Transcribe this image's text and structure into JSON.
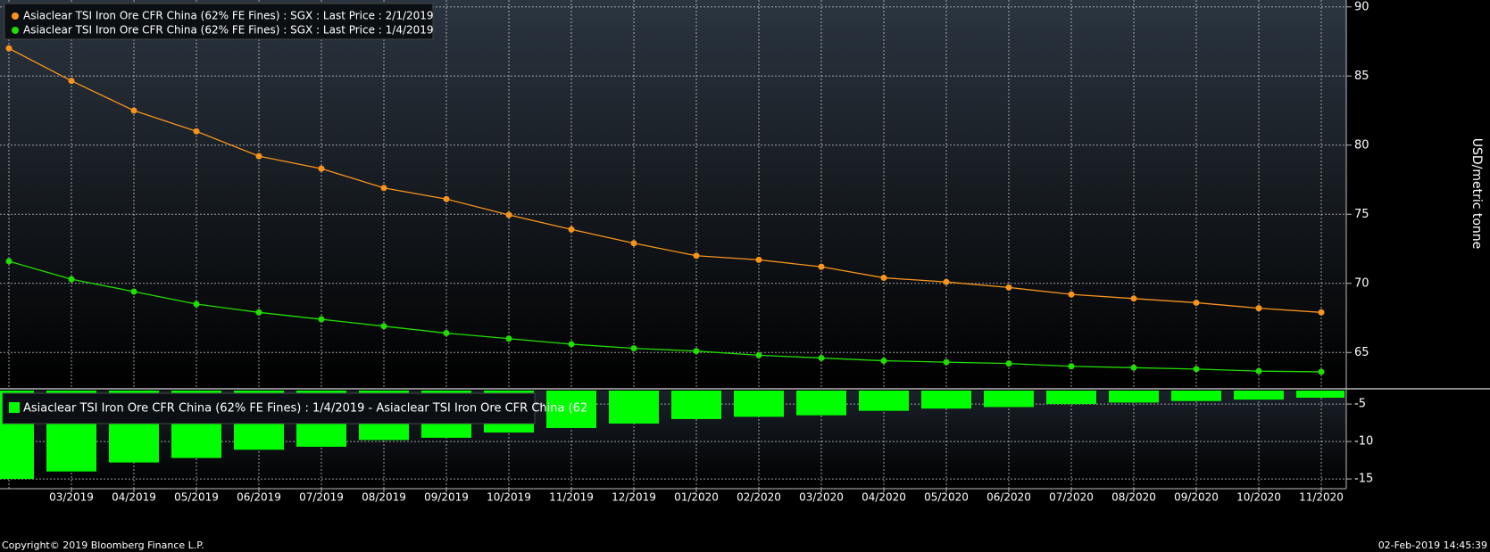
{
  "chart_data": [
    {
      "type": "line",
      "series": [
        {
          "name": "Asiaclear TSI Iron Ore CFR China (62% FE Fines) : SGX : Last Price : 2/1/2019",
          "color": "#f7941d",
          "values": [
            87.0,
            84.65,
            82.5,
            81.0,
            79.2,
            78.3,
            76.9,
            76.1,
            74.95,
            73.9,
            72.9,
            72.0,
            71.7,
            71.2,
            70.4,
            70.1,
            69.7,
            69.2,
            68.9,
            68.6,
            68.2,
            67.9
          ]
        },
        {
          "name": "Asiaclear TSI Iron Ore CFR China (62% FE Fines) : SGX : Last Price : 1/4/2019",
          "color": "#22dd00",
          "values": [
            71.6,
            70.3,
            69.4,
            68.5,
            67.9,
            67.4,
            66.9,
            66.4,
            66.0,
            65.6,
            65.3,
            65.1,
            64.8,
            64.6,
            64.4,
            64.3,
            64.2,
            64.0,
            63.9,
            63.8,
            63.65,
            63.6
          ]
        }
      ],
      "ylim": [
        62.5,
        90.5
      ],
      "yticks": [
        65,
        70,
        75,
        80,
        85,
        90
      ],
      "ylabel": "USD/metric tonne",
      "grid": true
    },
    {
      "type": "bar",
      "categories": [
        null,
        "03/2019",
        "04/2019",
        "05/2019",
        "06/2019",
        "07/2019",
        "08/2019",
        "09/2019",
        "10/2019",
        "11/2019",
        "12/2019",
        "01/2020",
        "02/2020",
        "03/2020",
        "04/2020",
        "05/2020",
        "06/2020",
        "07/2020",
        "08/2020",
        "09/2020",
        "10/2020",
        "11/2020"
      ],
      "series": [
        {
          "name": "Asiaclear TSI Iron Ore CFR China (62% FE Fines) : 1/4/2019 - Asiaclear TSI Iron Ore CFR China (62",
          "color": "#00ff00",
          "values": [
            -15.0,
            -14.0,
            -12.8,
            -12.2,
            -11.1,
            -10.7,
            -9.8,
            -9.5,
            -8.8,
            -8.2,
            -7.6,
            -7.0,
            -6.7,
            -6.5,
            -5.9,
            -5.6,
            -5.4,
            -5.0,
            -4.8,
            -4.6,
            -4.4,
            -4.15
          ]
        }
      ],
      "ylim": [
        -16.3,
        -3.2
      ],
      "yticks": [
        -15,
        -10,
        -5
      ],
      "grid": true
    }
  ],
  "footer": {
    "copyright": "Copyright© 2019 Bloomberg Finance L.P.",
    "timestamp": "02-Feb-2019 14:45:39"
  }
}
